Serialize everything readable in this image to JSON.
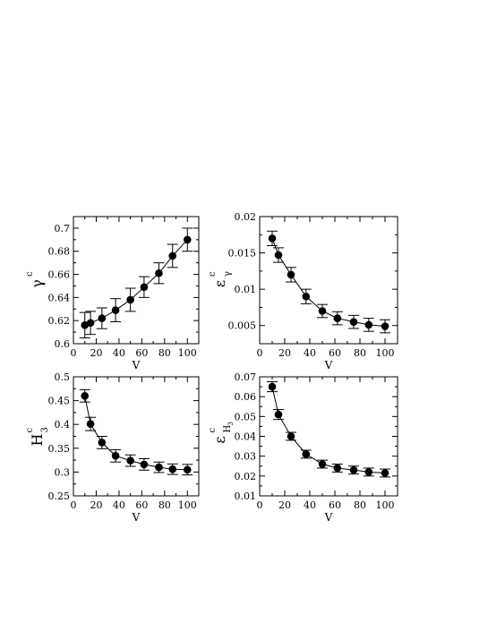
{
  "chart_data": [
    {
      "type": "scatter",
      "ylabel": "γ",
      "ylabel_sup": "c",
      "ylabel_sub": "",
      "xlabel": "V",
      "xlim": [
        0,
        110
      ],
      "ylim": [
        0.6,
        0.71
      ],
      "xticks": [
        0,
        20,
        40,
        60,
        80,
        100
      ],
      "yticks": [
        0.6,
        0.62,
        0.64,
        0.66,
        0.68,
        0.7
      ],
      "ytick_labels": [
        "0.6",
        "0.62",
        "0.64",
        "0.66",
        "0.68",
        "0.7"
      ],
      "x": [
        10,
        15,
        25,
        37,
        50,
        62,
        75,
        87,
        100
      ],
      "y": [
        0.616,
        0.618,
        0.622,
        0.629,
        0.638,
        0.649,
        0.661,
        0.676,
        0.69
      ],
      "err": [
        0.011,
        0.01,
        0.009,
        0.01,
        0.01,
        0.009,
        0.009,
        0.01,
        0.01
      ],
      "line": true
    },
    {
      "type": "scatter",
      "ylabel": "ε",
      "ylabel_sup": "c",
      "ylabel_sub": "γ",
      "xlabel": "V",
      "xlim": [
        0,
        110
      ],
      "ylim": [
        0.0025,
        0.02
      ],
      "xticks": [
        0,
        20,
        40,
        60,
        80,
        100
      ],
      "yticks": [
        0.005,
        0.01,
        0.015,
        0.02
      ],
      "ytick_labels": [
        "0.005",
        "0.01",
        "0.015",
        "0.02"
      ],
      "x": [
        10,
        15,
        25,
        37,
        50,
        62,
        75,
        87,
        100
      ],
      "y": [
        0.017,
        0.0147,
        0.012,
        0.009,
        0.007,
        0.006,
        0.0055,
        0.0051,
        0.0049
      ],
      "err": [
        0.001,
        0.001,
        0.001,
        0.001,
        0.0009,
        0.0009,
        0.0009,
        0.0009,
        0.0009
      ],
      "line": true
    },
    {
      "type": "scatter",
      "ylabel": "H",
      "ylabel_sup": "c",
      "ylabel_sub": "3",
      "xlabel": "V",
      "xlim": [
        0,
        110
      ],
      "ylim": [
        0.25,
        0.5
      ],
      "xticks": [
        0,
        20,
        40,
        60,
        80,
        100
      ],
      "yticks": [
        0.25,
        0.3,
        0.35,
        0.4,
        0.45,
        0.5
      ],
      "ytick_labels": [
        "0.25",
        "0.3",
        "0.35",
        "0.4",
        "0.45",
        "0.5"
      ],
      "x": [
        10,
        15,
        25,
        37,
        50,
        62,
        75,
        87,
        100
      ],
      "y": [
        0.46,
        0.401,
        0.362,
        0.334,
        0.324,
        0.316,
        0.31,
        0.306,
        0.305
      ],
      "err": [
        0.013,
        0.014,
        0.013,
        0.013,
        0.012,
        0.012,
        0.011,
        0.011,
        0.011
      ],
      "line": true
    },
    {
      "type": "scatter",
      "ylabel": "ε",
      "ylabel_sup": "c",
      "ylabel_sub": "H",
      "ylabel_subsub": "3",
      "xlabel": "V",
      "xlim": [
        0,
        110
      ],
      "ylim": [
        0.01,
        0.07
      ],
      "xticks": [
        0,
        20,
        40,
        60,
        80,
        100
      ],
      "yticks": [
        0.01,
        0.02,
        0.03,
        0.04,
        0.05,
        0.06,
        0.07
      ],
      "ytick_labels": [
        "0.01",
        "0.02",
        "0.03",
        "0.04",
        "0.05",
        "0.06",
        "0.07"
      ],
      "x": [
        10,
        15,
        25,
        37,
        50,
        62,
        75,
        87,
        100
      ],
      "y": [
        0.065,
        0.051,
        0.04,
        0.031,
        0.026,
        0.024,
        0.023,
        0.022,
        0.0215
      ],
      "err": [
        0.0025,
        0.0025,
        0.002,
        0.002,
        0.002,
        0.002,
        0.002,
        0.002,
        0.002
      ],
      "line": true
    }
  ]
}
